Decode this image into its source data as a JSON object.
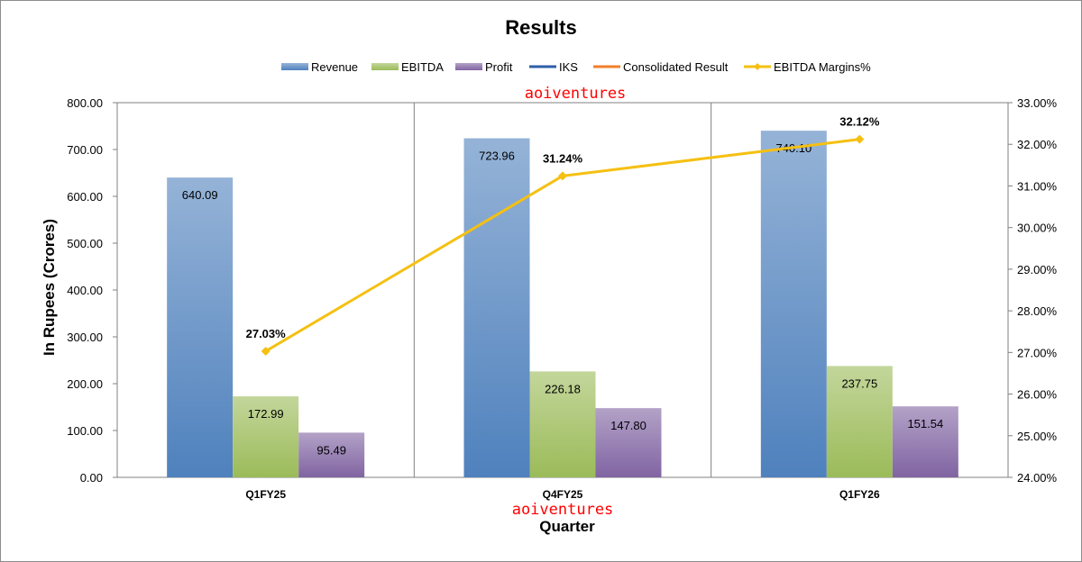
{
  "chart_data": {
    "type": "bar",
    "title": "Results",
    "xlabel": "Quarter",
    "ylabel": "In Rupees (Crores)",
    "categories": [
      "Q1FY25",
      "Q4FY25",
      "Q1FY26"
    ],
    "ylim": [
      0,
      800
    ],
    "yticks": [
      "0.00",
      "100.00",
      "200.00",
      "300.00",
      "400.00",
      "500.00",
      "600.00",
      "700.00",
      "800.00"
    ],
    "y2lim": [
      24,
      33
    ],
    "y2ticks": [
      "24.00%",
      "25.00%",
      "26.00%",
      "27.00%",
      "28.00%",
      "29.00%",
      "30.00%",
      "31.00%",
      "32.00%",
      "33.00%"
    ],
    "legend_position": "top",
    "series": [
      {
        "name": "Revenue",
        "values": [
          640.09,
          723.96,
          740.1
        ],
        "labels": [
          "640.09",
          "723.96",
          "740.10"
        ],
        "color": "#4f81bd"
      },
      {
        "name": "EBITDA",
        "values": [
          172.99,
          226.18,
          237.75
        ],
        "labels": [
          "172.99",
          "226.18",
          "237.75"
        ],
        "color": "#9bbb59"
      },
      {
        "name": "Profit",
        "values": [
          95.49,
          147.8,
          151.54
        ],
        "labels": [
          "95.49",
          "147.80",
          "151.54"
        ],
        "color": "#8064a2"
      }
    ],
    "empty_series": [
      {
        "name": "IKS",
        "color": "#2e5fa8"
      },
      {
        "name": "Consolidated Result",
        "color": "#f07f2a"
      }
    ],
    "line_series": {
      "name": "EBITDA Margins%",
      "values": [
        27.03,
        31.24,
        32.12
      ],
      "labels": [
        "27.03%",
        "31.24%",
        "32.12%"
      ],
      "color": "#f5c012",
      "axis": "secondary"
    }
  },
  "watermark": "aoiventures"
}
